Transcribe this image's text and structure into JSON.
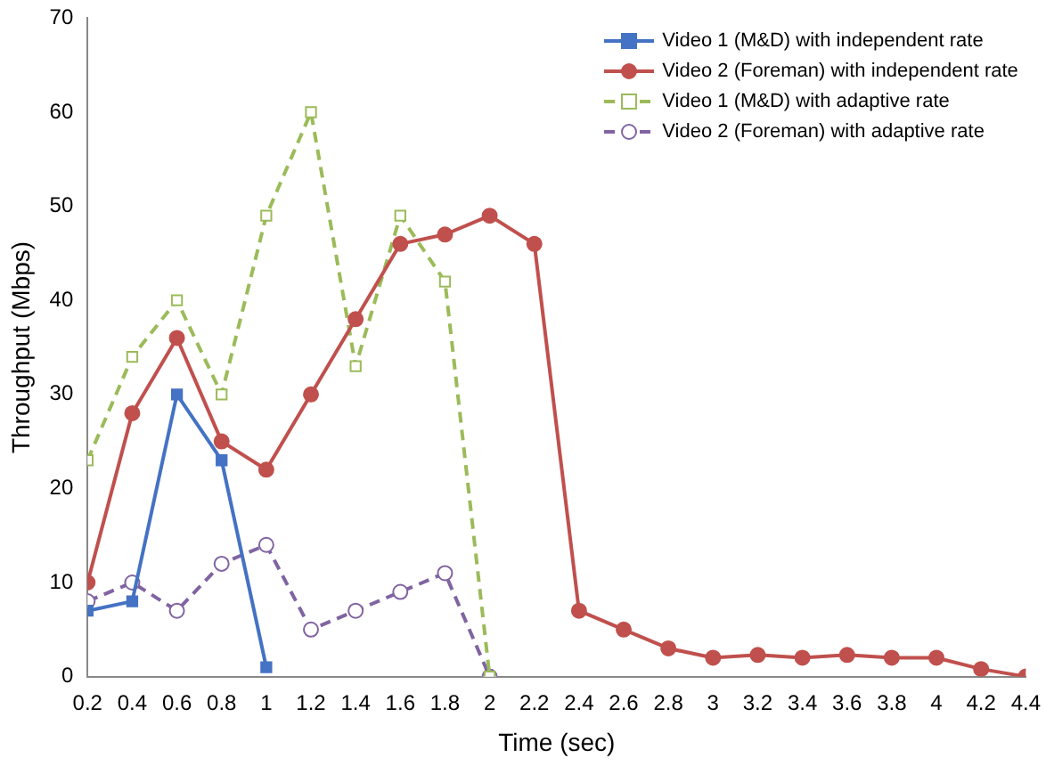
{
  "chart_data": {
    "type": "line",
    "xlabel": "Time (sec)",
    "ylabel": "Throughput (Mbps)",
    "xlim": [
      0.2,
      4.4
    ],
    "xticks": [
      0.2,
      0.4,
      0.6,
      0.8,
      1,
      1.2,
      1.4,
      1.6,
      1.8,
      2,
      2.2,
      2.4,
      2.6,
      2.8,
      3,
      3.2,
      3.4,
      3.6,
      3.8,
      4,
      4.2,
      4.4
    ],
    "ylim": [
      0,
      70
    ],
    "yticks": [
      0,
      10,
      20,
      30,
      40,
      50,
      60,
      70
    ],
    "grid": false,
    "legend": "top right",
    "series": [
      {
        "name": "Video 1 (M&D) with independent rate",
        "color": "#4472c4",
        "marker": "square",
        "line_style": "solid",
        "x": [
          0.2,
          0.4,
          0.6,
          0.8,
          1
        ],
        "values": [
          7,
          8,
          30,
          23,
          1
        ]
      },
      {
        "name": "Video 2 (Foreman) with independent rate",
        "color": "#c0504d",
        "marker": "circle",
        "line_style": "solid",
        "x": [
          0.2,
          0.4,
          0.6,
          0.8,
          1,
          1.2,
          1.4,
          1.6,
          1.8,
          2,
          2.2,
          2.4,
          2.6,
          2.8,
          3,
          3.2,
          3.4,
          3.6,
          3.8,
          4,
          4.2,
          4.4
        ],
        "values": [
          10,
          28,
          36,
          25,
          22,
          30,
          38,
          46,
          47,
          49,
          46,
          7,
          5,
          3,
          2,
          2.3,
          2,
          2.3,
          2,
          2,
          0.8,
          0
        ]
      },
      {
        "name": "Video 1 (M&D) with adaptive rate",
        "color": "#9bbb59",
        "marker": "square",
        "line_style": "dashed",
        "x": [
          0.2,
          0.4,
          0.6,
          0.8,
          1,
          1.2,
          1.4,
          1.6,
          1.8,
          2
        ],
        "values": [
          23,
          34,
          40,
          30,
          49,
          60,
          33,
          49,
          42,
          0
        ]
      },
      {
        "name": "Video 2 (Foreman) with adaptive rate",
        "color": "#8064a2",
        "marker": "circle",
        "line_style": "dashed",
        "x": [
          0.2,
          0.4,
          0.6,
          0.8,
          1,
          1.2,
          1.4,
          1.6,
          1.8,
          2
        ],
        "values": [
          8,
          10,
          7,
          12,
          14,
          5,
          7,
          9,
          11,
          0
        ]
      }
    ]
  }
}
